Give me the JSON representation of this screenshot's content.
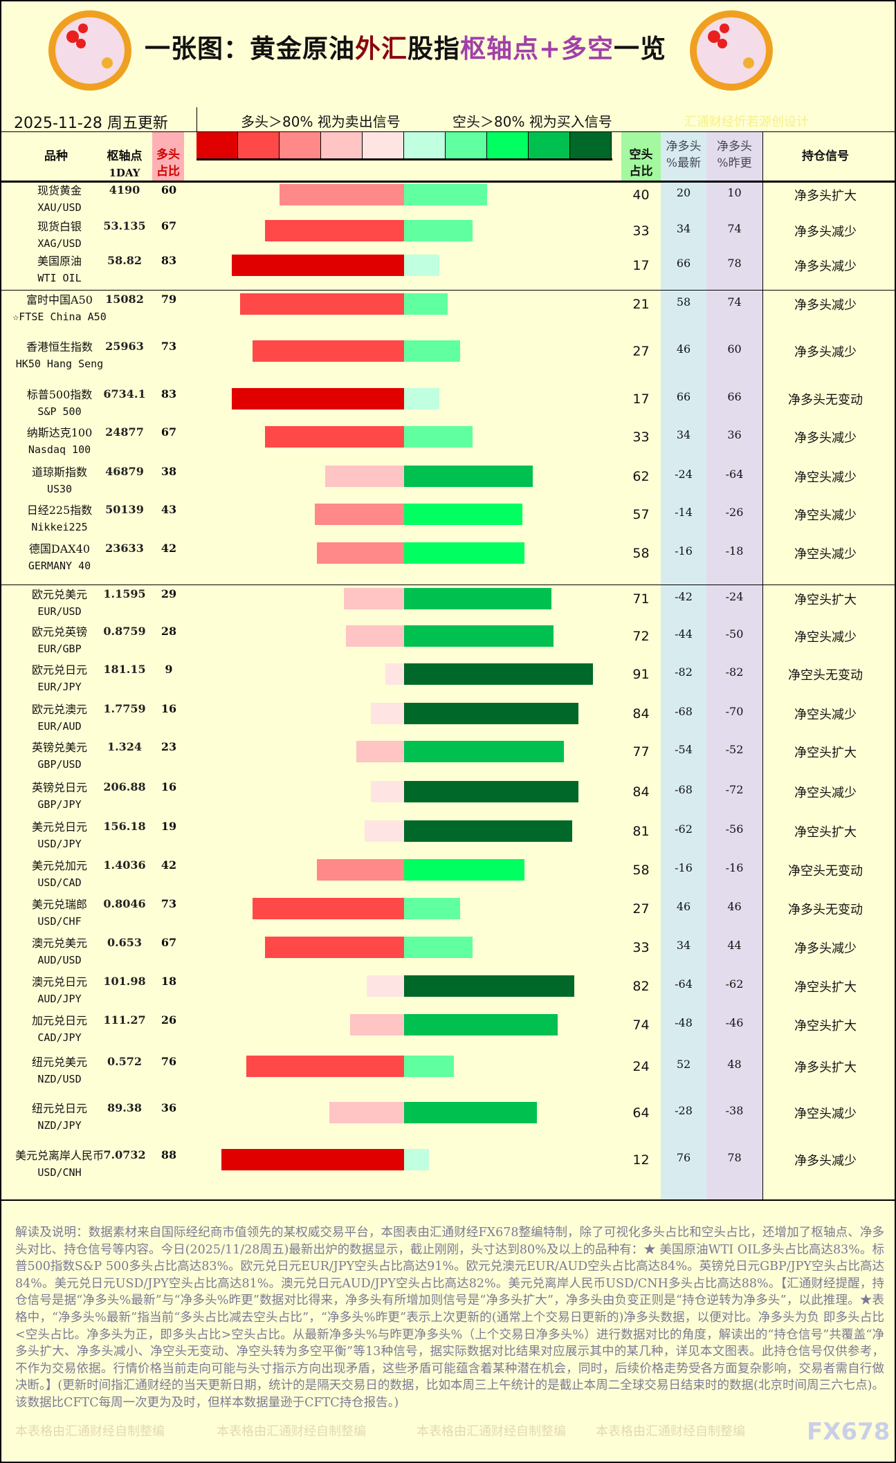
{
  "header": {
    "title_segments": [
      {
        "text": "一张图：黄金原油",
        "color": "#111111"
      },
      {
        "text": "外汇",
        "color": "#8b0010"
      },
      {
        "text": "股指",
        "color": "#111111"
      },
      {
        "text": "枢轴点+多空",
        "color": "#a040a8"
      },
      {
        "text": "一览",
        "color": "#111111"
      }
    ],
    "date": "2025-11-28 周五更新",
    "legend_long": "多头＞80% 视为卖出信号",
    "legend_short": "空头＞80% 视为买入信号",
    "credit": "汇通财经忻若源创设计",
    "legend_colors": [
      "#e00000",
      "#ff4848",
      "#ff8888",
      "#ffc4c4",
      "#ffe4e4",
      "#c0ffe0",
      "#60ffa0",
      "#00ff60",
      "#00c050",
      "#006828"
    ]
  },
  "columns": {
    "name": "品种",
    "pivot": "枢轴点",
    "pivot_sub": "1DAY",
    "long1": "多头",
    "long2": "占比",
    "short1": "空头",
    "short2": "占比",
    "net1a": "净多头",
    "net1b": "%最新",
    "net2a": "净多头",
    "net2b": "%昨更",
    "signal": "持仓信号"
  },
  "rows": [
    {
      "name": "现货黄金",
      "code": "XAU/USD",
      "pivot": "4190",
      "long": 60,
      "short": 40,
      "net": 20,
      "prev": 10,
      "signal": "净多头扩大"
    },
    {
      "name": "现货白银",
      "code": "XAG/USD",
      "pivot": "53.135",
      "long": 67,
      "short": 33,
      "net": 34,
      "prev": 74,
      "signal": "净多头减少"
    },
    {
      "name": "美国原油",
      "code": "WTI OIL",
      "pivot": "58.82",
      "long": 83,
      "short": 17,
      "net": 66,
      "prev": 78,
      "signal": "净多头减少"
    },
    {
      "name": "富时中国A50",
      "code": "☆FTSE China A50",
      "pivot": "15082",
      "long": 79,
      "short": 21,
      "net": 58,
      "prev": 74,
      "signal": "净多头减少"
    },
    {
      "name": "香港恒生指数",
      "code": "HK50 Hang Seng",
      "pivot": "25963",
      "long": 73,
      "short": 27,
      "net": 46,
      "prev": 60,
      "signal": "净多头减少"
    },
    {
      "name": "标普500指数",
      "code": "S&P 500",
      "pivot": "6734.1",
      "long": 83,
      "short": 17,
      "net": 66,
      "prev": 66,
      "signal": "净多头无变动"
    },
    {
      "name": "纳斯达克100",
      "code": "Nasdaq 100",
      "pivot": "24877",
      "long": 67,
      "short": 33,
      "net": 34,
      "prev": 36,
      "signal": "净多头减少"
    },
    {
      "name": "道琼斯指数",
      "code": "US30",
      "pivot": "46879",
      "long": 38,
      "short": 62,
      "net": -24,
      "prev": -64,
      "signal": "净空头减少"
    },
    {
      "name": "日经225指数",
      "code": "Nikkei225",
      "pivot": "50139",
      "long": 43,
      "short": 57,
      "net": -14,
      "prev": -26,
      "signal": "净空头减少"
    },
    {
      "name": "德国DAX40",
      "code": "GERMANY 40",
      "pivot": "23633",
      "long": 42,
      "short": 58,
      "net": -16,
      "prev": -18,
      "signal": "净空头减少"
    },
    {
      "name": "欧元兑美元",
      "code": "EUR/USD",
      "pivot": "1.1595",
      "long": 29,
      "short": 71,
      "net": -42,
      "prev": -24,
      "signal": "净空头扩大"
    },
    {
      "name": "欧元兑英镑",
      "code": "EUR/GBP",
      "pivot": "0.8759",
      "long": 28,
      "short": 72,
      "net": -44,
      "prev": -50,
      "signal": "净空头减少"
    },
    {
      "name": "欧元兑日元",
      "code": "EUR/JPY",
      "pivot": "181.15",
      "long": 9,
      "short": 91,
      "net": -82,
      "prev": -82,
      "signal": "净空头无变动"
    },
    {
      "name": "欧元兑澳元",
      "code": "EUR/AUD",
      "pivot": "1.7759",
      "long": 16,
      "short": 84,
      "net": -68,
      "prev": -70,
      "signal": "净空头减少"
    },
    {
      "name": "英镑兑美元",
      "code": "GBP/USD",
      "pivot": "1.324",
      "long": 23,
      "short": 77,
      "net": -54,
      "prev": -52,
      "signal": "净空头扩大"
    },
    {
      "name": "英镑兑日元",
      "code": "GBP/JPY",
      "pivot": "206.88",
      "long": 16,
      "short": 84,
      "net": -68,
      "prev": -72,
      "signal": "净空头减少"
    },
    {
      "name": "美元兑日元",
      "code": "USD/JPY",
      "pivot": "156.18",
      "long": 19,
      "short": 81,
      "net": -62,
      "prev": -56,
      "signal": "净空头扩大"
    },
    {
      "name": "美元兑加元",
      "code": "USD/CAD",
      "pivot": "1.4036",
      "long": 42,
      "short": 58,
      "net": -16,
      "prev": -16,
      "signal": "净空头无变动"
    },
    {
      "name": "美元兑瑞郎",
      "code": "USD/CHF",
      "pivot": "0.8046",
      "long": 73,
      "short": 27,
      "net": 46,
      "prev": 46,
      "signal": "净多头无变动"
    },
    {
      "name": "澳元兑美元",
      "code": "AUD/USD",
      "pivot": "0.653",
      "long": 67,
      "short": 33,
      "net": 34,
      "prev": 44,
      "signal": "净多头减少"
    },
    {
      "name": "澳元兑日元",
      "code": "AUD/JPY",
      "pivot": "101.98",
      "long": 18,
      "short": 82,
      "net": -64,
      "prev": -62,
      "signal": "净空头扩大"
    },
    {
      "name": "加元兑日元",
      "code": "CAD/JPY",
      "pivot": "111.27",
      "long": 26,
      "short": 74,
      "net": -48,
      "prev": -46,
      "signal": "净空头扩大"
    },
    {
      "name": "纽元兑美元",
      "code": "NZD/USD",
      "pivot": "0.572",
      "long": 76,
      "short": 24,
      "net": 52,
      "prev": 48,
      "signal": "净多头扩大"
    },
    {
      "name": "纽元兑日元",
      "code": "NZD/JPY",
      "pivot": "89.38",
      "long": 36,
      "short": 64,
      "net": -28,
      "prev": -38,
      "signal": "净空头减少"
    },
    {
      "name": "美元兑离岸人民币",
      "code": "USD/CNH",
      "pivot": "7.0732",
      "long": 88,
      "short": 12,
      "net": 76,
      "prev": 78,
      "signal": "净多头减少"
    }
  ],
  "note": "解读及说明：数据素材来自国际经纪商市值领先的某权威交易平台，本图表由汇通财经FX678整编特制，除了可视化多头占比和空头占比，还增加了枢轴点、净多头对比、持仓信号等内容。今日(2025/11/28周五)最新出炉的数据显示，截止刚刚，头寸达到80%及以上的品种有：★ 美国原油WTI OIL多头占比高达83%。标普500指数S&P 500多头占比高达83%。欧元兑日元EUR/JPY空头占比高达91%。欧元兑澳元EUR/AUD空头占比高达84%。英镑兑日元GBP/JPY空头占比高达84%。美元兑日元USD/JPY空头占比高达81%。澳元兑日元AUD/JPY空头占比高达82%。美元兑离岸人民币USD/CNH多头占比高达88%。【汇通财经提醒，持仓信号是据“净多头%最新”与“净多头%昨更”数据对比得来，净多头有所增加则信号是“净多头扩大”，净多头由负变正则是“持仓逆转为净多头”，以此推理。★表格中，“净多头%最新”指当前“多头占比减去空头占比”，“净多头%昨更”表示上次更新的(通常上个交易日更新的)净多头数据，以便对比。净多头为负 即多头占比<空头占比。净多头为正，即多头占比>空头占比。从最新净多头%与昨更净多头%（上个交易日净多头%）进行数据对比的角度，解读出的“持仓信号”共覆盖“净多头扩大、净多头减小、净空头无变动、净空头转为多空平衡”等13种信号，据实际数据对比结果对应展示其中的某几种，详见本文图表。此持仓信号仅供参考，不作为交易依据。行情价格当前走向可能与头寸指示方向出现矛盾，这些矛盾可能蕴含着某种潜在机会，同时，后续价格走势受各方面复杂影响，交易者需自行做决断。】(更新时间指汇通财经的当天更新日期，统计的是隔天交易日的数据，比如本周三上午统计的是截止本周二全球交易日结束时的数据(北京时间周三六七点)。该数据比CFTC每周一次更为及时，但样本数据量逊于CFTC持仓报告。)",
  "footer": {
    "watermark": "本表格由汇通财经自制整编",
    "brand": "FX678"
  }
}
